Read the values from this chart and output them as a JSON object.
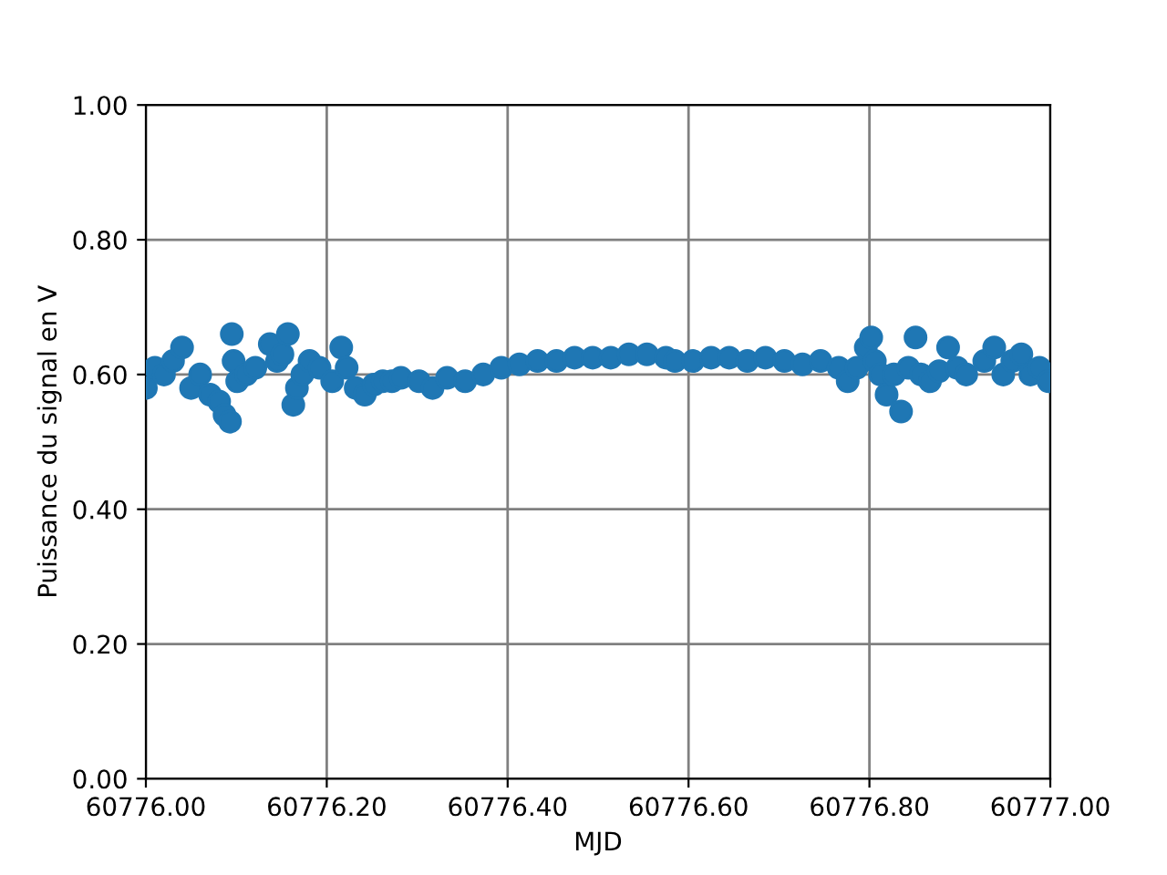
{
  "chart_data": {
    "type": "scatter",
    "xlabel": "MJD",
    "ylabel": "Puissance du signal en V",
    "marker": "circle",
    "grid": true,
    "xlim": [
      60776.0,
      60777.0
    ],
    "ylim": [
      0.0,
      1.0
    ],
    "xticks": [
      {
        "value": 60776.0,
        "label": "60776.00"
      },
      {
        "value": 60776.2,
        "label": "60776.20"
      },
      {
        "value": 60776.4,
        "label": "60776.40"
      },
      {
        "value": 60776.6,
        "label": "60776.60"
      },
      {
        "value": 60776.8,
        "label": "60776.80"
      },
      {
        "value": 60777.0,
        "label": "60777.00"
      }
    ],
    "yticks": [
      {
        "value": 0.0,
        "label": "0.00"
      },
      {
        "value": 0.2,
        "label": "0.20"
      },
      {
        "value": 0.4,
        "label": "0.40"
      },
      {
        "value": 0.6,
        "label": "0.60"
      },
      {
        "value": 0.8,
        "label": "0.80"
      },
      {
        "value": 1.0,
        "label": "1.00"
      }
    ],
    "series": [
      {
        "color": "#1f77b4",
        "x": [
          60776.0,
          60776.01,
          60776.02,
          60776.03,
          60776.04,
          60776.05,
          60776.06,
          60776.071,
          60776.081,
          60776.087,
          60776.093,
          60776.095,
          60776.097,
          60776.101,
          60776.111,
          60776.121,
          60776.137,
          60776.145,
          60776.151,
          60776.157,
          60776.163,
          60776.167,
          60776.173,
          60776.181,
          60776.192,
          60776.206,
          60776.216,
          60776.222,
          60776.232,
          60776.242,
          60776.252,
          60776.262,
          60776.272,
          60776.282,
          60776.302,
          60776.317,
          60776.333,
          60776.353,
          60776.373,
          60776.393,
          60776.413,
          60776.433,
          60776.454,
          60776.474,
          60776.494,
          60776.514,
          60776.534,
          60776.554,
          60776.575,
          60776.585,
          60776.605,
          60776.625,
          60776.645,
          60776.665,
          60776.685,
          60776.706,
          60776.726,
          60776.746,
          60776.766,
          60776.776,
          60776.786,
          60776.796,
          60776.802,
          60776.806,
          60776.812,
          60776.819,
          60776.827,
          60776.835,
          60776.843,
          60776.851,
          60776.857,
          60776.867,
          60776.877,
          60776.887,
          60776.897,
          60776.907,
          60776.927,
          60776.938,
          60776.948,
          60776.958,
          60776.968,
          60776.978,
          60776.988,
          60776.998
        ],
        "values": [
          0.58,
          0.61,
          0.6,
          0.62,
          0.64,
          0.58,
          0.6,
          0.57,
          0.56,
          0.54,
          0.53,
          0.66,
          0.62,
          0.59,
          0.6,
          0.61,
          0.645,
          0.62,
          0.63,
          0.66,
          0.555,
          0.58,
          0.6,
          0.62,
          0.61,
          0.59,
          0.64,
          0.61,
          0.58,
          0.57,
          0.585,
          0.59,
          0.59,
          0.595,
          0.59,
          0.58,
          0.595,
          0.59,
          0.6,
          0.61,
          0.615,
          0.62,
          0.62,
          0.625,
          0.625,
          0.625,
          0.63,
          0.63,
          0.625,
          0.62,
          0.62,
          0.625,
          0.625,
          0.62,
          0.625,
          0.62,
          0.615,
          0.62,
          0.61,
          0.59,
          0.61,
          0.64,
          0.655,
          0.62,
          0.6,
          0.57,
          0.6,
          0.545,
          0.61,
          0.655,
          0.6,
          0.59,
          0.605,
          0.64,
          0.61,
          0.6,
          0.62,
          0.64,
          0.6,
          0.62,
          0.63,
          0.6,
          0.61,
          0.59
        ]
      }
    ]
  }
}
